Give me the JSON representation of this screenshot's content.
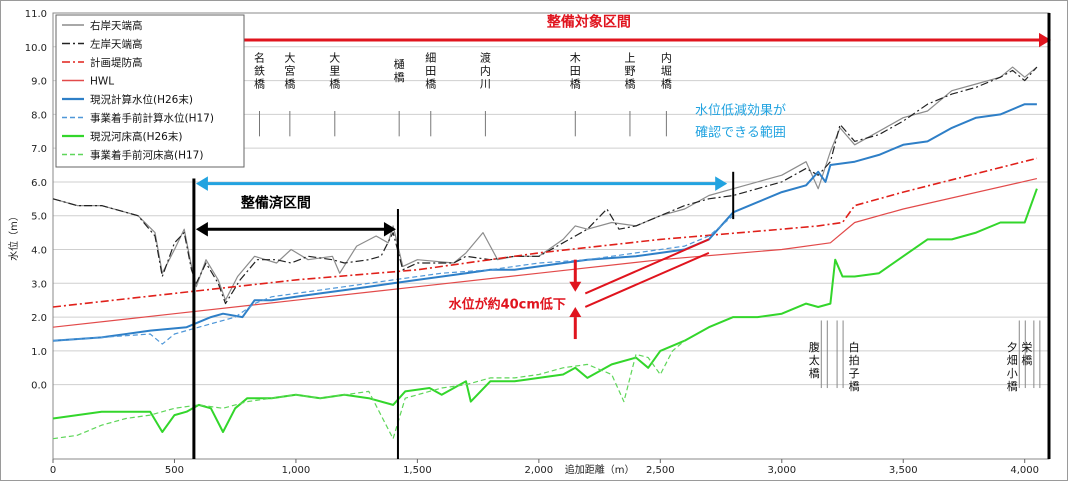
{
  "chart_data": {
    "type": "line",
    "title": "",
    "xlabel": "追加距離（m）",
    "ylabel": "水位（m）",
    "xlim": [
      0,
      4100
    ],
    "ylim": [
      -2.2,
      11.0
    ],
    "grid": "horizontal",
    "legend_position": "top-left",
    "x_ticks": [
      0,
      500,
      1000,
      1500,
      2000,
      2500,
      3000,
      3500,
      4000
    ],
    "x_tick_labels": [
      "0",
      "500",
      "1,000",
      "1,500",
      "2,000",
      "2,500",
      "3,000",
      "3,500",
      "4,000"
    ],
    "y_ticks": [
      0.0,
      1.0,
      2.0,
      3.0,
      4.0,
      5.0,
      6.0,
      7.0,
      8.0,
      9.0,
      10.0,
      11.0
    ],
    "y_tick_labels": [
      "0.0",
      "1.0",
      "2.0",
      "3.0",
      "4.0",
      "5.0",
      "6.0",
      "7.0",
      "8.0",
      "9.0",
      "10.0",
      "11.0"
    ],
    "series": [
      {
        "name": "右岸天端高",
        "color": "#8c8c8c",
        "dash": "solid",
        "points": [
          [
            0,
            5.5
          ],
          [
            100,
            5.3
          ],
          [
            200,
            5.3
          ],
          [
            350,
            5.0
          ],
          [
            420,
            4.5
          ],
          [
            450,
            3.3
          ],
          [
            500,
            4.0
          ],
          [
            540,
            4.6
          ],
          [
            570,
            3.5
          ],
          [
            590,
            2.9
          ],
          [
            630,
            3.7
          ],
          [
            680,
            3.1
          ],
          [
            710,
            2.5
          ],
          [
            760,
            3.2
          ],
          [
            830,
            3.8
          ],
          [
            920,
            3.6
          ],
          [
            980,
            4.0
          ],
          [
            1050,
            3.7
          ],
          [
            1150,
            3.8
          ],
          [
            1180,
            3.3
          ],
          [
            1250,
            4.1
          ],
          [
            1330,
            4.4
          ],
          [
            1380,
            4.2
          ],
          [
            1400,
            4.7
          ],
          [
            1440,
            3.5
          ],
          [
            1500,
            3.7
          ],
          [
            1650,
            3.6
          ],
          [
            1700,
            3.9
          ],
          [
            1770,
            4.5
          ],
          [
            1830,
            3.7
          ],
          [
            1900,
            3.8
          ],
          [
            2000,
            3.8
          ],
          [
            2100,
            4.3
          ],
          [
            2150,
            4.7
          ],
          [
            2200,
            4.6
          ],
          [
            2300,
            4.8
          ],
          [
            2400,
            4.7
          ],
          [
            2500,
            5.0
          ],
          [
            2600,
            5.2
          ],
          [
            2700,
            5.6
          ],
          [
            2800,
            5.8
          ],
          [
            2900,
            6.0
          ],
          [
            3000,
            6.2
          ],
          [
            3100,
            6.6
          ],
          [
            3150,
            5.8
          ],
          [
            3200,
            6.9
          ],
          [
            3240,
            7.6
          ],
          [
            3300,
            7.1
          ],
          [
            3400,
            7.5
          ],
          [
            3500,
            7.9
          ],
          [
            3600,
            8.1
          ],
          [
            3700,
            8.7
          ],
          [
            3800,
            8.9
          ],
          [
            3900,
            9.1
          ],
          [
            3950,
            9.4
          ],
          [
            4000,
            9.1
          ],
          [
            4050,
            9.4
          ]
        ]
      },
      {
        "name": "左岸天端高",
        "color": "#222222",
        "dash": "dashdot",
        "points": [
          [
            0,
            5.5
          ],
          [
            100,
            5.3
          ],
          [
            200,
            5.3
          ],
          [
            350,
            5.0
          ],
          [
            420,
            4.4
          ],
          [
            450,
            3.2
          ],
          [
            500,
            4.2
          ],
          [
            540,
            4.5
          ],
          [
            570,
            3.4
          ],
          [
            590,
            3.0
          ],
          [
            630,
            3.6
          ],
          [
            680,
            3.0
          ],
          [
            710,
            2.4
          ],
          [
            770,
            3.1
          ],
          [
            840,
            3.7
          ],
          [
            920,
            3.7
          ],
          [
            980,
            3.6
          ],
          [
            1050,
            3.8
          ],
          [
            1150,
            3.7
          ],
          [
            1200,
            3.6
          ],
          [
            1300,
            3.7
          ],
          [
            1350,
            3.8
          ],
          [
            1400,
            4.5
          ],
          [
            1440,
            3.4
          ],
          [
            1500,
            3.6
          ],
          [
            1650,
            3.6
          ],
          [
            1700,
            3.8
          ],
          [
            1800,
            3.7
          ],
          [
            1900,
            3.8
          ],
          [
            2000,
            3.8
          ],
          [
            2100,
            4.2
          ],
          [
            2200,
            4.6
          ],
          [
            2280,
            5.2
          ],
          [
            2330,
            4.6
          ],
          [
            2400,
            4.7
          ],
          [
            2500,
            5.0
          ],
          [
            2600,
            5.3
          ],
          [
            2700,
            5.5
          ],
          [
            2800,
            5.6
          ],
          [
            2900,
            5.8
          ],
          [
            3000,
            6.0
          ],
          [
            3100,
            6.4
          ],
          [
            3150,
            6.2
          ],
          [
            3200,
            6.6
          ],
          [
            3240,
            7.7
          ],
          [
            3300,
            7.2
          ],
          [
            3400,
            7.4
          ],
          [
            3500,
            7.8
          ],
          [
            3600,
            8.3
          ],
          [
            3700,
            8.6
          ],
          [
            3800,
            8.8
          ],
          [
            3900,
            9.1
          ],
          [
            3950,
            9.3
          ],
          [
            4000,
            9.0
          ],
          [
            4050,
            9.4
          ]
        ]
      },
      {
        "name": "計画堤防高",
        "color": "#e0201a",
        "dash": "dashdot",
        "points": [
          [
            0,
            2.3
          ],
          [
            500,
            2.7
          ],
          [
            1000,
            3.1
          ],
          [
            1500,
            3.4
          ],
          [
            2000,
            3.9
          ],
          [
            2500,
            4.3
          ],
          [
            3000,
            4.6
          ],
          [
            3150,
            4.7
          ],
          [
            3250,
            4.8
          ],
          [
            3300,
            5.3
          ],
          [
            3500,
            5.7
          ],
          [
            4050,
            6.7
          ]
        ]
      },
      {
        "name": "HWL",
        "color": "#e24a4a",
        "dash": "solid",
        "points": [
          [
            0,
            1.7
          ],
          [
            500,
            2.1
          ],
          [
            1000,
            2.5
          ],
          [
            1500,
            2.9
          ],
          [
            2000,
            3.3
          ],
          [
            2500,
            3.7
          ],
          [
            3000,
            4.0
          ],
          [
            3200,
            4.2
          ],
          [
            3300,
            4.8
          ],
          [
            3500,
            5.2
          ],
          [
            4050,
            6.1
          ]
        ]
      },
      {
        "name": "現況計算水位(H26末)",
        "color": "#2e7fc7",
        "dash": "solid",
        "points": [
          [
            0,
            1.3
          ],
          [
            200,
            1.4
          ],
          [
            400,
            1.6
          ],
          [
            550,
            1.7
          ],
          [
            650,
            2.0
          ],
          [
            700,
            2.1
          ],
          [
            780,
            2.0
          ],
          [
            830,
            2.5
          ],
          [
            900,
            2.5
          ],
          [
            1000,
            2.6
          ],
          [
            1100,
            2.7
          ],
          [
            1200,
            2.8
          ],
          [
            1300,
            2.9
          ],
          [
            1400,
            3.0
          ],
          [
            1500,
            3.1
          ],
          [
            1700,
            3.3
          ],
          [
            1800,
            3.4
          ],
          [
            1900,
            3.4
          ],
          [
            2000,
            3.5
          ],
          [
            2200,
            3.7
          ],
          [
            2400,
            3.8
          ],
          [
            2600,
            4.0
          ],
          [
            2700,
            4.3
          ],
          [
            2800,
            5.1
          ],
          [
            2900,
            5.4
          ],
          [
            3000,
            5.7
          ],
          [
            3100,
            5.9
          ],
          [
            3150,
            6.3
          ],
          [
            3180,
            6.0
          ],
          [
            3200,
            6.5
          ],
          [
            3300,
            6.6
          ],
          [
            3400,
            6.8
          ],
          [
            3500,
            7.1
          ],
          [
            3600,
            7.2
          ],
          [
            3700,
            7.6
          ],
          [
            3800,
            7.9
          ],
          [
            3900,
            8.0
          ],
          [
            4000,
            8.3
          ],
          [
            4050,
            8.3
          ]
        ]
      },
      {
        "name": "事業着手前計算水位(H17)",
        "color": "#4f97d8",
        "dash": "dashed",
        "points": [
          [
            0,
            1.3
          ],
          [
            200,
            1.4
          ],
          [
            400,
            1.5
          ],
          [
            450,
            1.2
          ],
          [
            500,
            1.5
          ],
          [
            550,
            1.6
          ],
          [
            650,
            1.8
          ],
          [
            750,
            2.0
          ],
          [
            830,
            2.4
          ],
          [
            900,
            2.6
          ],
          [
            1000,
            2.7
          ],
          [
            1200,
            2.9
          ],
          [
            1400,
            3.1
          ],
          [
            1600,
            3.3
          ],
          [
            1800,
            3.4
          ],
          [
            2000,
            3.6
          ],
          [
            2200,
            3.7
          ],
          [
            2400,
            3.9
          ],
          [
            2600,
            4.1
          ],
          [
            2700,
            4.4
          ],
          [
            2800,
            5.0
          ]
        ]
      },
      {
        "name": "現況河床高(H26末)",
        "color": "#33d62b",
        "dash": "solid",
        "points": [
          [
            0,
            -1.0
          ],
          [
            200,
            -0.8
          ],
          [
            400,
            -0.8
          ],
          [
            450,
            -1.4
          ],
          [
            500,
            -0.9
          ],
          [
            550,
            -0.8
          ],
          [
            600,
            -0.6
          ],
          [
            650,
            -0.7
          ],
          [
            700,
            -1.4
          ],
          [
            750,
            -0.7
          ],
          [
            800,
            -0.4
          ],
          [
            900,
            -0.4
          ],
          [
            1000,
            -0.3
          ],
          [
            1100,
            -0.4
          ],
          [
            1200,
            -0.3
          ],
          [
            1300,
            -0.4
          ],
          [
            1400,
            -0.6
          ],
          [
            1450,
            -0.2
          ],
          [
            1550,
            -0.1
          ],
          [
            1600,
            -0.3
          ],
          [
            1700,
            0.1
          ],
          [
            1720,
            -0.5
          ],
          [
            1800,
            0.1
          ],
          [
            1900,
            0.1
          ],
          [
            2000,
            0.2
          ],
          [
            2100,
            0.3
          ],
          [
            2150,
            0.5
          ],
          [
            2200,
            0.2
          ],
          [
            2300,
            0.6
          ],
          [
            2400,
            0.8
          ],
          [
            2450,
            0.5
          ],
          [
            2500,
            1.0
          ],
          [
            2600,
            1.3
          ],
          [
            2700,
            1.7
          ],
          [
            2800,
            2.0
          ],
          [
            2900,
            2.0
          ],
          [
            3000,
            2.1
          ],
          [
            3100,
            2.4
          ],
          [
            3150,
            2.3
          ],
          [
            3200,
            2.4
          ],
          [
            3220,
            3.7
          ],
          [
            3250,
            3.2
          ],
          [
            3300,
            3.2
          ],
          [
            3400,
            3.3
          ],
          [
            3500,
            3.8
          ],
          [
            3600,
            4.3
          ],
          [
            3700,
            4.3
          ],
          [
            3800,
            4.5
          ],
          [
            3900,
            4.8
          ],
          [
            4000,
            4.8
          ],
          [
            4050,
            5.8
          ]
        ]
      },
      {
        "name": "事業着手前河床高(H17)",
        "color": "#5fd65a",
        "dash": "dashed",
        "points": [
          [
            0,
            -1.6
          ],
          [
            100,
            -1.5
          ],
          [
            200,
            -1.2
          ],
          [
            300,
            -1.0
          ],
          [
            400,
            -0.9
          ],
          [
            500,
            -0.7
          ],
          [
            600,
            -0.6
          ],
          [
            700,
            -0.7
          ],
          [
            800,
            -0.5
          ],
          [
            900,
            -0.4
          ],
          [
            1000,
            -0.3
          ],
          [
            1100,
            -0.4
          ],
          [
            1200,
            -0.3
          ],
          [
            1300,
            -0.2
          ],
          [
            1400,
            -1.6
          ],
          [
            1450,
            -0.4
          ],
          [
            1500,
            -0.3
          ],
          [
            1600,
            -0.1
          ],
          [
            1700,
            0.0
          ],
          [
            1800,
            0.2
          ],
          [
            1900,
            0.2
          ],
          [
            2000,
            0.3
          ],
          [
            2100,
            0.5
          ],
          [
            2200,
            0.6
          ],
          [
            2300,
            0.3
          ],
          [
            2350,
            -0.5
          ],
          [
            2400,
            0.9
          ],
          [
            2450,
            0.8
          ],
          [
            2500,
            0.3
          ],
          [
            2550,
            1.0
          ],
          [
            2600,
            1.3
          ]
        ]
      }
    ],
    "bridges_top": [
      {
        "label": "名鉄橋",
        "x": 850
      },
      {
        "label": "大宮橋",
        "x": 975
      },
      {
        "label": "大里橋",
        "x": 1160
      },
      {
        "label": "樋橋",
        "x": 1425
      },
      {
        "label": "細田橋",
        "x": 1555
      },
      {
        "label": "渡内川",
        "x": 1780
      },
      {
        "label": "木田橋",
        "x": 2150
      },
      {
        "label": "上野橋",
        "x": 2375
      },
      {
        "label": "内堀橋",
        "x": 2525
      }
    ],
    "bridges_bottom": [
      {
        "label": "腹太橋",
        "x": 3175
      },
      {
        "label": "白拍子橋",
        "x": 3240
      },
      {
        "label": "夕畑小橋",
        "x": 3990
      },
      {
        "label": "栄橋",
        "x": 4050
      }
    ],
    "annotations": {
      "maintenance_target": {
        "label": "整備対象区間",
        "x_start": 580,
        "x_end": 4100
      },
      "maintained": {
        "label": "整備済区間",
        "x_start": 580,
        "x_end": 1420
      },
      "effect": {
        "label_line1": "水位低減効果が",
        "label_line2": "確認できる範囲",
        "x_start": 580,
        "x_end": 2800
      },
      "drop": {
        "label": "水位が約40cm低下"
      }
    }
  }
}
